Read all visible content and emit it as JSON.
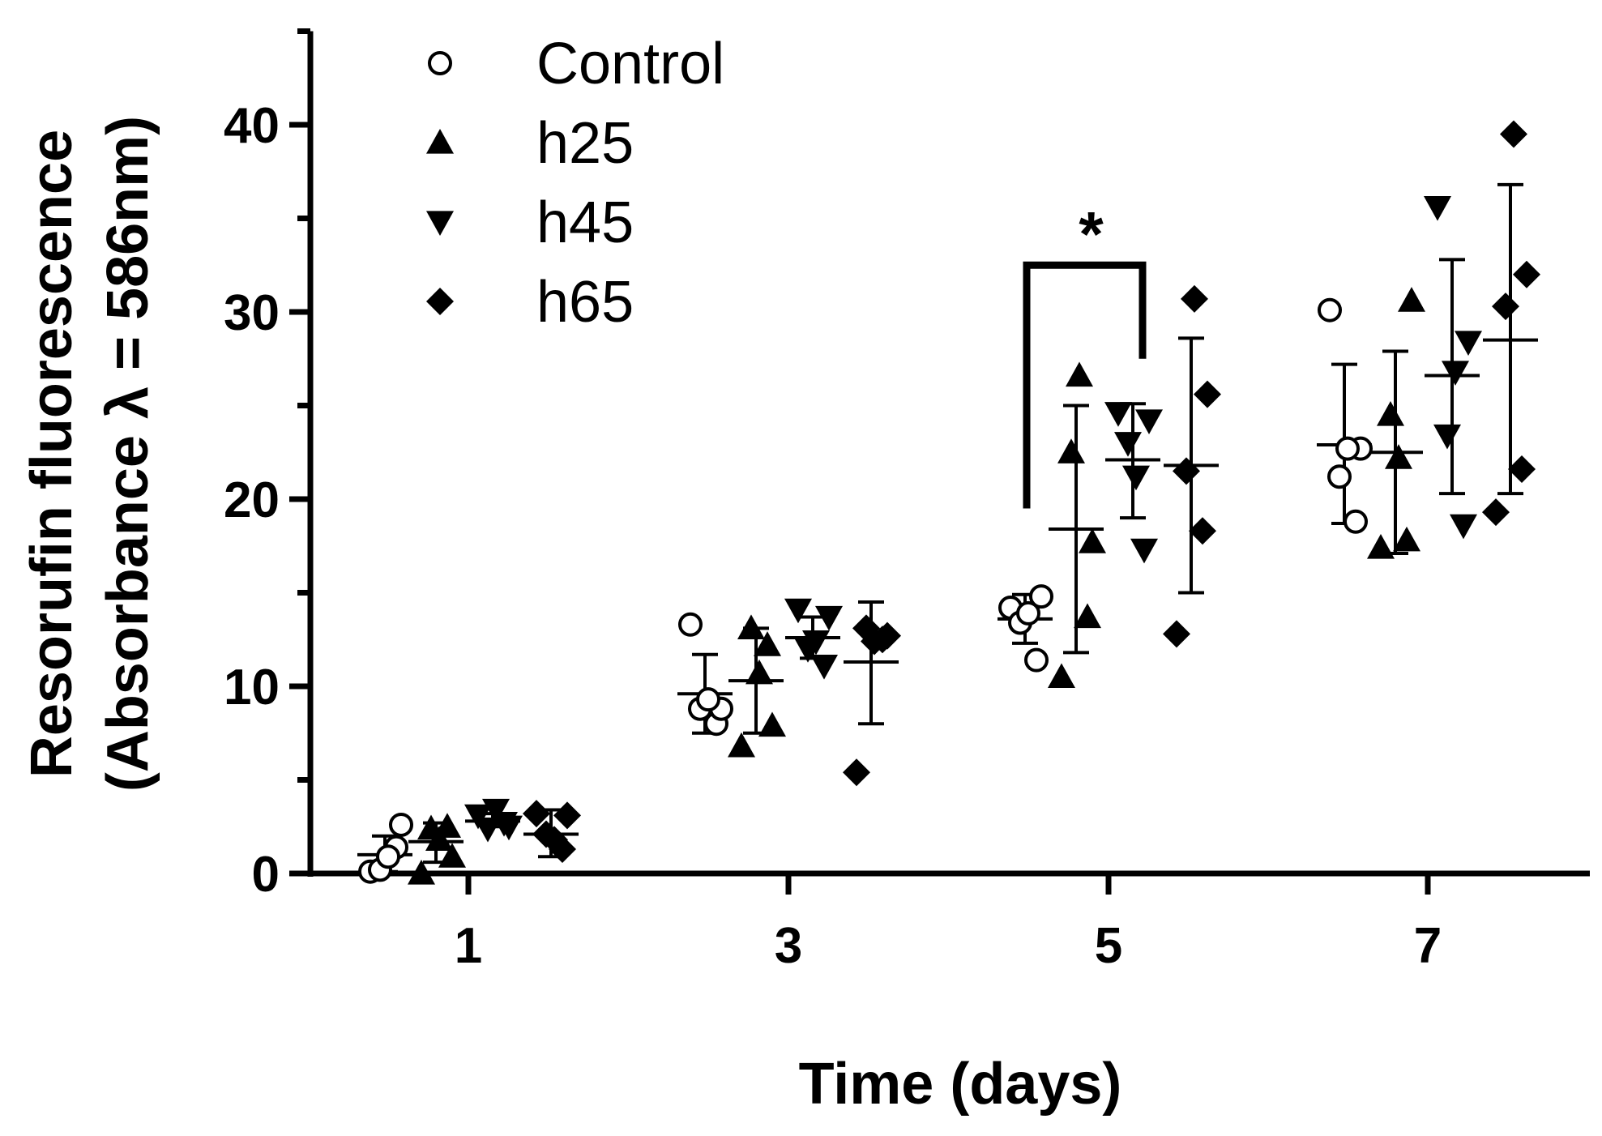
{
  "chart_data": {
    "type": "scatter",
    "xlabel": "Time (days)",
    "ylabel_line1": "Resorufin fluorescence",
    "ylabel_line2": "(Absorbance λ = 586nm)",
    "ylim": [
      0,
      45
    ],
    "yticks_major": [
      0,
      10,
      20,
      30,
      40
    ],
    "yticks_minor": [
      5,
      15,
      25,
      35,
      45
    ],
    "categories": [
      "1",
      "3",
      "5",
      "7"
    ],
    "legend": {
      "placement": "top-left"
    },
    "series": [
      {
        "name": "Control",
        "marker": "circle-open",
        "groups": [
          {
            "day": "1",
            "points": [
              0.1,
              1.4,
              0.2,
              2.6,
              0.9
            ],
            "mean": 1.0,
            "sd_low": 0.1,
            "sd_high": 2.0
          },
          {
            "day": "3",
            "points": [
              13.3,
              8.0,
              8.8,
              8.8,
              9.3
            ],
            "mean": 9.6,
            "sd_low": 7.5,
            "sd_high": 11.7
          },
          {
            "day": "5",
            "points": [
              14.2,
              11.4,
              13.4,
              14.8,
              13.9
            ],
            "mean": 13.6,
            "sd_low": 12.3,
            "sd_high": 14.9
          },
          {
            "day": "7",
            "points": [
              30.1,
              18.8,
              21.2,
              22.7,
              22.7
            ],
            "mean": 22.9,
            "sd_low": 18.7,
            "sd_high": 27.2
          }
        ]
      },
      {
        "name": "h25",
        "marker": "triangle-up",
        "groups": [
          {
            "day": "1",
            "points": [
              0.0,
              2.5,
              2.4,
              0.9,
              1.8
            ],
            "mean": 1.7,
            "sd_low": 0.6,
            "sd_high": 2.7
          },
          {
            "day": "3",
            "points": [
              6.8,
              12.2,
              13.1,
              7.9,
              10.7
            ],
            "mean": 10.3,
            "sd_low": 7.5,
            "sd_high": 13.1
          },
          {
            "day": "5",
            "points": [
              10.5,
              13.7,
              22.5,
              17.7,
              26.6
            ],
            "mean": 18.4,
            "sd_low": 11.8,
            "sd_high": 25.0
          },
          {
            "day": "7",
            "points": [
              17.4,
              17.8,
              24.5,
              30.6,
              22.2
            ],
            "mean": 22.5,
            "sd_low": 17.1,
            "sd_high": 27.9
          }
        ]
      },
      {
        "name": "h45",
        "marker": "triangle-down",
        "groups": [
          {
            "day": "1",
            "points": [
              3.1,
              2.7,
              2.4,
              2.5,
              3.4
            ],
            "mean": 2.8,
            "sd_low": 2.5,
            "sd_high": 3.2
          },
          {
            "day": "3",
            "points": [
              14.1,
              11.1,
              12.0,
              13.7,
              12.4
            ],
            "mean": 12.6,
            "sd_low": 11.5,
            "sd_high": 13.7
          },
          {
            "day": "5",
            "points": [
              24.6,
              17.3,
              23.0,
              24.2,
              21.2
            ],
            "mean": 22.1,
            "sd_low": 19.0,
            "sd_high": 25.1
          },
          {
            "day": "7",
            "points": [
              35.6,
              18.6,
              23.4,
              28.4,
              26.8
            ],
            "mean": 26.6,
            "sd_low": 20.3,
            "sd_high": 32.8
          }
        ]
      },
      {
        "name": "h65",
        "marker": "diamond",
        "groups": [
          {
            "day": "1",
            "points": [
              3.2,
              1.3,
              2.1,
              3.1,
              1.8
            ],
            "mean": 2.1,
            "sd_low": 0.9,
            "sd_high": 3.4
          },
          {
            "day": "3",
            "points": [
              5.4,
              12.5,
              13.1,
              12.7,
              12.4
            ],
            "mean": 11.3,
            "sd_low": 8.0,
            "sd_high": 14.5
          },
          {
            "day": "5",
            "points": [
              12.8,
              18.3,
              21.5,
              25.6,
              30.7
            ],
            "mean": 21.8,
            "sd_low": 15.0,
            "sd_high": 28.6
          },
          {
            "day": "7",
            "points": [
              19.3,
              21.6,
              30.3,
              32.0,
              39.5
            ],
            "mean": 28.5,
            "sd_low": 20.3,
            "sd_high": 36.8
          }
        ]
      }
    ],
    "annotations": [
      {
        "type": "significance-bracket",
        "text": "*",
        "from_series": "Control",
        "to_series": "h45",
        "day": "5",
        "left_low": 19.5,
        "right_low": 27.5,
        "top": 32.5
      }
    ]
  }
}
